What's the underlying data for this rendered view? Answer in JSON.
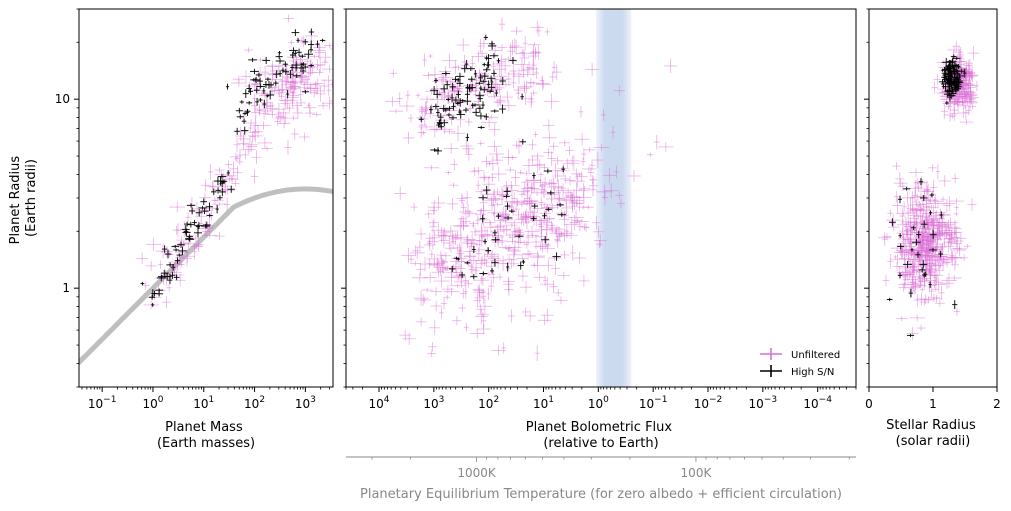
{
  "colors": {
    "unfiltered": "#da70d6",
    "high_sn": "#000000",
    "mass_radius_curve": "#bfbfbf",
    "habitable_band": "#c9d8ef",
    "secondary_axis": "#888888"
  },
  "chart_data": [
    {
      "type": "scatter",
      "panel": "mass",
      "xlabel": "Planet Mass\n(Earth masses)",
      "ylabel": "Planet Radius\n(Earth radii)",
      "xscale": "log",
      "yscale": "log",
      "xlim": [
        0.035,
        3500
      ],
      "ylim": [
        0.3,
        30
      ],
      "xticks": [
        {
          "value": 0.1,
          "base": "10",
          "exp": "−1"
        },
        {
          "value": 1,
          "base": "10",
          "exp": "0"
        },
        {
          "value": 10,
          "base": "10",
          "exp": "1"
        },
        {
          "value": 100,
          "base": "10",
          "exp": "2"
        },
        {
          "value": 1000,
          "base": "10",
          "exp": "3"
        }
      ],
      "yticks": [
        {
          "value": 1,
          "label": "1"
        },
        {
          "value": 10,
          "label": "10"
        }
      ],
      "curve_note": "rocky mass-radius relation (gray line)",
      "clusters": [
        {
          "series": "Unfiltered",
          "n": 150,
          "x": [
            1,
            1000
          ],
          "y": [
            1,
            15
          ],
          "spread": 0.12
        },
        {
          "series": "Unfiltered",
          "n": 110,
          "x": [
            100,
            3000
          ],
          "y": [
            10,
            14
          ],
          "spread": 0.2
        },
        {
          "series": "High S/N",
          "n": 60,
          "x": [
            1,
            30
          ],
          "y": [
            1,
            4
          ],
          "spread": 0.08
        },
        {
          "series": "High S/N",
          "n": 70,
          "x": [
            50,
            1500
          ],
          "y": [
            9,
            18
          ],
          "spread": 0.12
        }
      ]
    },
    {
      "type": "scatter",
      "panel": "flux",
      "xlabel": "Planet Bolometric Flux\n(relative to Earth)",
      "secondary_xlabel": "Planetary Equilibrium Temperature (for zero albedo + efficient circulation)",
      "xscale": "log",
      "xreversed": true,
      "yscale": "log",
      "xlim": [
        40000,
        2e-05
      ],
      "ylim": [
        0.3,
        30
      ],
      "xticks": [
        {
          "value": 10000,
          "base": "10",
          "exp": "4"
        },
        {
          "value": 1000,
          "base": "10",
          "exp": "3"
        },
        {
          "value": 100,
          "base": "10",
          "exp": "2"
        },
        {
          "value": 10,
          "base": "10",
          "exp": "1"
        },
        {
          "value": 1,
          "base": "10",
          "exp": "0"
        },
        {
          "value": 0.1,
          "base": "10",
          "exp": "−1"
        },
        {
          "value": 0.01,
          "base": "10",
          "exp": "−2"
        },
        {
          "value": 0.001,
          "base": "10",
          "exp": "−3"
        },
        {
          "value": 0.0001,
          "base": "10",
          "exp": "−4"
        }
      ],
      "secondary_ticks": [
        {
          "temperature_K": 1000,
          "label": "1000K"
        },
        {
          "temperature_K": 100,
          "label": "100K"
        }
      ],
      "habitable_zone_flux": [
        1.1,
        0.25
      ],
      "legend": {
        "position": "lower-right",
        "entries": [
          {
            "label": "Unfiltered",
            "color": "#da70d6"
          },
          {
            "label": "High S/N",
            "color": "#000000"
          }
        ]
      },
      "clusters": [
        {
          "series": "Unfiltered",
          "n": 450,
          "x": [
            1000,
            3
          ],
          "y": [
            1.3,
            3.2
          ],
          "spread": 0.3
        },
        {
          "series": "Unfiltered",
          "n": 180,
          "x": [
            2000,
            10
          ],
          "y": [
            9,
            15
          ],
          "spread": 0.2
        },
        {
          "series": "Unfiltered",
          "n": 60,
          "x": [
            10,
            0.3
          ],
          "y": [
            1,
            8
          ],
          "spread": 0.4
        },
        {
          "series": "High S/N",
          "n": 90,
          "x": [
            1000,
            50
          ],
          "y": [
            8,
            15
          ],
          "spread": 0.15
        },
        {
          "series": "High S/N",
          "n": 40,
          "x": [
            300,
            5
          ],
          "y": [
            1.5,
            3
          ],
          "spread": 0.25
        }
      ]
    },
    {
      "type": "scatter",
      "panel": "stellar",
      "xlabel": "Stellar Radius\n(solar radii)",
      "xscale": "linear",
      "yscale": "log",
      "xlim": [
        0,
        2
      ],
      "ylim": [
        0.3,
        30
      ],
      "xticks": [
        {
          "value": 0,
          "label": "0"
        },
        {
          "value": 1,
          "label": "1"
        },
        {
          "value": 2,
          "label": "2"
        }
      ],
      "clusters": [
        {
          "series": "Unfiltered",
          "n": 420,
          "x": [
            0.9,
            0.9
          ],
          "y": [
            1.8,
            1.8
          ],
          "spread": 0.25
        },
        {
          "series": "Unfiltered",
          "n": 200,
          "x": [
            1.4,
            1.4
          ],
          "y": [
            12,
            12
          ],
          "spread": 0.12
        },
        {
          "series": "High S/N",
          "n": 110,
          "x": [
            1.3,
            1.3
          ],
          "y": [
            13,
            13
          ],
          "spread": 0.08
        },
        {
          "series": "High S/N",
          "n": 30,
          "x": [
            0.8,
            0.8
          ],
          "y": [
            1.8,
            1.8
          ],
          "spread": 0.3
        }
      ]
    }
  ]
}
